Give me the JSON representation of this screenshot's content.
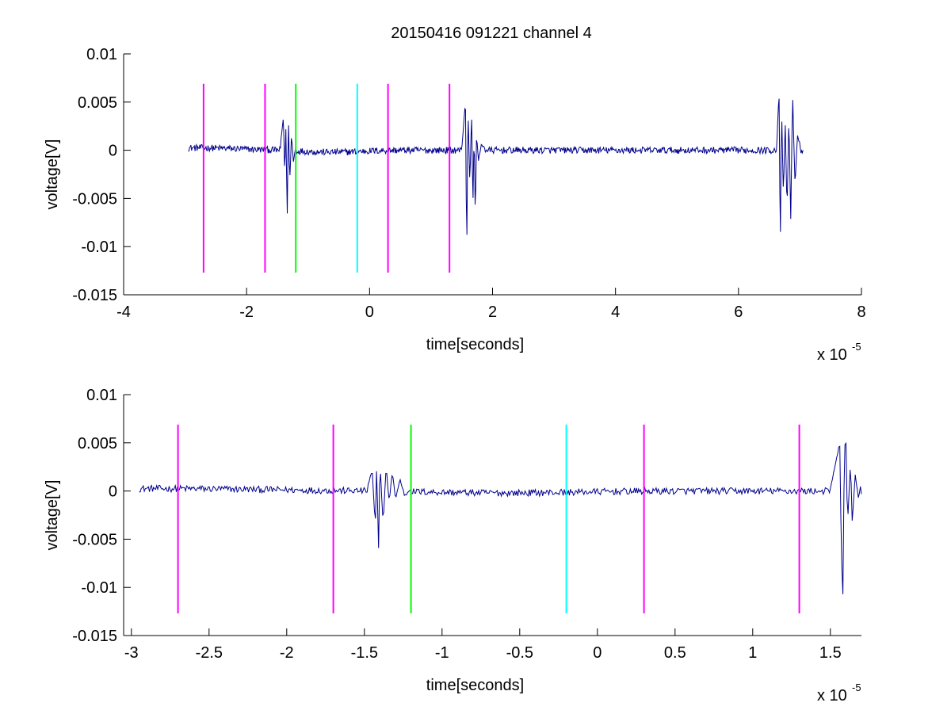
{
  "figure": {
    "title": "20150416 091221 channel 4"
  },
  "chart_data": [
    {
      "type": "line",
      "xlabel": "time[seconds]",
      "ylabel": "voltage[V]",
      "x_multiplier": "x 10",
      "x_exponent": "-5",
      "xlim": [
        -4,
        8
      ],
      "ylim": [
        -0.015,
        0.01
      ],
      "xticks": [
        -4,
        -2,
        0,
        2,
        4,
        6,
        8
      ],
      "xtick_labels": [
        "-4",
        "-2",
        "0",
        "2",
        "4",
        "6",
        "8"
      ],
      "yticks": [
        0.01,
        0.005,
        0,
        -0.005,
        -0.01,
        -0.015
      ],
      "ytick_labels": [
        "0.01",
        "0.005",
        "0",
        "-0.005",
        "-0.01",
        "-0.015"
      ],
      "signal_range": [
        -2.95,
        7.05
      ],
      "markers": [
        {
          "x": -2.7,
          "color": "#ff00ff"
        },
        {
          "x": -1.7,
          "color": "#ff00ff"
        },
        {
          "x": -1.2,
          "color": "#00ff00"
        },
        {
          "x": -0.2,
          "color": "#00ffff"
        },
        {
          "x": 0.3,
          "color": "#ff00ff"
        },
        {
          "x": 1.3,
          "color": "#ff00ff"
        }
      ],
      "marker_range": [
        -0.0127,
        0.0069
      ],
      "bursts": [
        {
          "x": [
            -1.45,
            -1.4,
            -1.38,
            -1.36,
            -1.34,
            -1.32,
            -1.3,
            -1.27,
            -1.24,
            -1.2
          ],
          "y": [
            0.0006,
            0.0035,
            -0.0026,
            0.0025,
            -0.0072,
            0.0038,
            -0.0034,
            0.0016,
            -0.0012,
            0.0004
          ]
        },
        {
          "x": [
            1.5,
            1.56,
            1.58,
            1.6,
            1.63,
            1.66,
            1.68,
            1.7,
            1.72,
            1.74,
            1.77,
            1.82,
            1.88
          ],
          "y": [
            0.0002,
            0.0052,
            -0.0115,
            0.0045,
            -0.0035,
            0.0038,
            -0.0062,
            0.0021,
            -0.0072,
            0.0016,
            -0.0011,
            0.0006,
            0.0002
          ]
        },
        {
          "x": [
            6.62,
            6.66,
            6.68,
            6.7,
            6.73,
            6.76,
            6.79,
            6.82,
            6.85,
            6.88,
            6.92,
            6.96,
            7.0
          ],
          "y": [
            0.0002,
            0.0063,
            -0.0112,
            0.0045,
            -0.0045,
            0.0028,
            -0.0062,
            0.0034,
            -0.0072,
            0.0059,
            -0.0038,
            0.0016,
            0.0006
          ]
        }
      ],
      "line_color": "#00008b"
    },
    {
      "type": "line",
      "xlabel": "time[seconds]",
      "ylabel": "voltage[V]",
      "x_multiplier": "x 10",
      "x_exponent": "-5",
      "xlim": [
        -3.05,
        1.7
      ],
      "ylim": [
        -0.015,
        0.01
      ],
      "xticks": [
        -3,
        -2.5,
        -2,
        -1.5,
        -1,
        -0.5,
        0,
        0.5,
        1,
        1.5
      ],
      "xtick_labels": [
        "-3",
        "-2.5",
        "-2",
        "-1.5",
        "-1",
        "-0.5",
        "0",
        "0.5",
        "1",
        "1.5"
      ],
      "yticks": [
        0.01,
        0.005,
        0,
        -0.005,
        -0.01,
        -0.015
      ],
      "ytick_labels": [
        "0.01",
        "0.005",
        "0",
        "-0.005",
        "-0.01",
        "-0.015"
      ],
      "signal_range": [
        -2.95,
        1.7
      ],
      "markers": [
        {
          "x": -2.7,
          "color": "#ff00ff"
        },
        {
          "x": -1.7,
          "color": "#ff00ff"
        },
        {
          "x": -1.2,
          "color": "#00ff00"
        },
        {
          "x": -0.2,
          "color": "#00ffff"
        },
        {
          "x": 0.3,
          "color": "#ff00ff"
        },
        {
          "x": 1.3,
          "color": "#ff00ff"
        }
      ],
      "marker_range": [
        -0.0127,
        0.0069
      ],
      "bursts": [
        {
          "x": [
            -1.48,
            -1.45,
            -1.43,
            -1.42,
            -1.41,
            -1.4,
            -1.38,
            -1.36,
            -1.34,
            -1.32,
            -1.3,
            -1.27,
            -1.24,
            -1.2
          ],
          "y": [
            0.0004,
            0.0021,
            -0.0038,
            0.0035,
            -0.0072,
            0.0032,
            -0.0034,
            0.0025,
            -0.0012,
            0.0021,
            -0.0008,
            0.0012,
            -0.0005,
            0.0003
          ]
        },
        {
          "x": [
            1.5,
            1.54,
            1.56,
            1.57,
            1.58,
            1.59,
            1.6,
            1.61,
            1.63,
            1.64,
            1.66,
            1.68,
            1.7
          ],
          "y": [
            0.0002,
            0.0033,
            0.0052,
            -0.0058,
            -0.0115,
            0.0045,
            0.0052,
            -0.0035,
            0.0032,
            -0.0032,
            0.0016,
            -0.0008,
            0.0012
          ]
        }
      ],
      "line_color": "#00008b"
    }
  ]
}
